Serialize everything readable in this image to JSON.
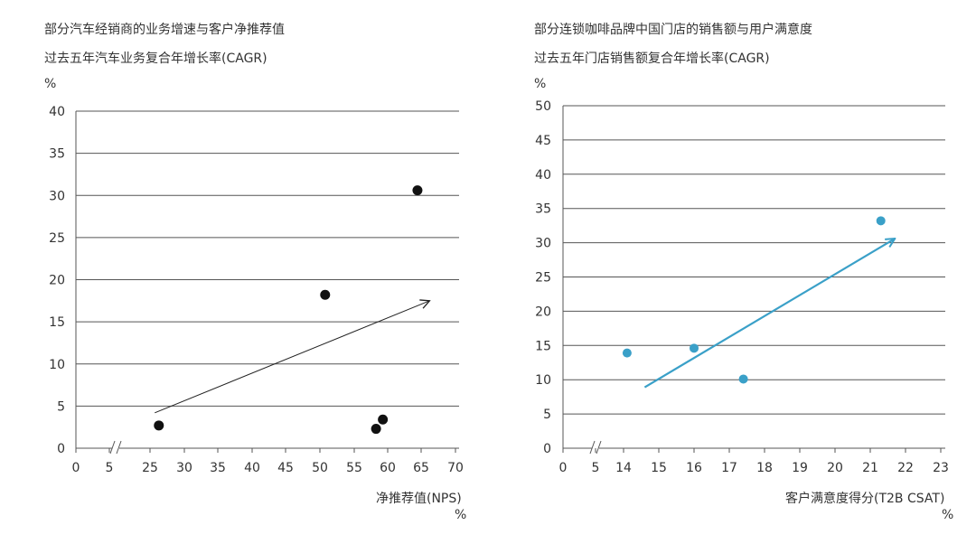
{
  "chart_data": [
    {
      "type": "scatter",
      "title": "部分汽车经销商的业务增速与客户净推荐值",
      "subtitle": "过去五年汽车业务复合年增长率(CAGR)",
      "y_unit": "%",
      "xlabel": "净推荐值(NPS)",
      "x_unit": "%",
      "x_ticks": [
        "0",
        "5",
        "25",
        "30",
        "35",
        "40",
        "45",
        "50",
        "55",
        "60",
        "65",
        "70"
      ],
      "y_ticks": [
        "0",
        "5",
        "10",
        "15",
        "20",
        "25",
        "30",
        "35",
        "40"
      ],
      "ylim": [
        0,
        40
      ],
      "x_axis_break": "between 5 and 25",
      "grid": "horizontal",
      "point_color": "#111111",
      "trend_color": "#222222",
      "points": [
        {
          "x": 26.3,
          "y": 2.7
        },
        {
          "x": 50.8,
          "y": 18.2
        },
        {
          "x": 58.3,
          "y": 2.3
        },
        {
          "x": 59.3,
          "y": 3.4
        },
        {
          "x": 64.4,
          "y": 30.6
        }
      ],
      "trend": {
        "from": [
          25.7,
          4.2
        ],
        "to": [
          66.2,
          17.5
        ]
      }
    },
    {
      "type": "scatter",
      "title": "部分连锁咖啡品牌中国门店的销售额与用户满意度",
      "subtitle": "过去五年门店销售额复合年增长率(CAGR)",
      "y_unit": "%",
      "xlabel": "客户满意度得分(T2B CSAT)",
      "x_unit": "%",
      "x_ticks": [
        "0",
        "5",
        "14",
        "15",
        "16",
        "17",
        "18",
        "19",
        "20",
        "21",
        "22",
        "23"
      ],
      "y_ticks": [
        "0",
        "5",
        "10",
        "15",
        "20",
        "25",
        "30",
        "35",
        "40",
        "45",
        "50"
      ],
      "ylim": [
        0,
        50
      ],
      "x_axis_break": "between 5 and 14",
      "grid": "horizontal",
      "point_color": "#3aa0c8",
      "trend_color": "#3aa0c8",
      "points": [
        {
          "x": 14.1,
          "y": 13.9
        },
        {
          "x": 16.0,
          "y": 14.6
        },
        {
          "x": 17.4,
          "y": 10.1
        },
        {
          "x": 21.3,
          "y": 33.2
        }
      ],
      "trend": {
        "from": [
          14.6,
          8.9
        ],
        "to": [
          21.7,
          30.6
        ]
      }
    }
  ]
}
